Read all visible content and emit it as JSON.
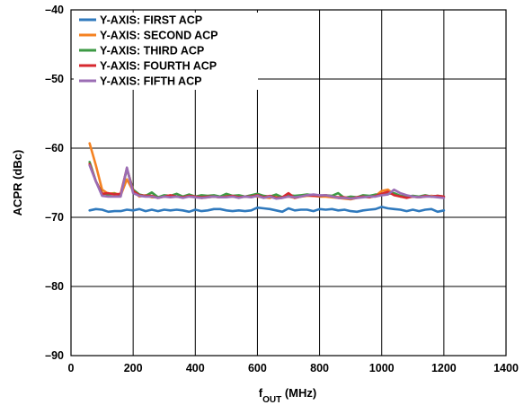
{
  "chart_data": {
    "type": "line",
    "title": "",
    "xlabel": {
      "main": "f",
      "sub": "OUT",
      "unit": " (MHz)"
    },
    "ylabel": "ACPR (dBc)",
    "xlim": [
      0,
      1400
    ],
    "ylim": [
      -90,
      -40
    ],
    "xticks": [
      0,
      200,
      400,
      600,
      800,
      1000,
      1200,
      1400
    ],
    "yticks": [
      -90,
      -80,
      -70,
      -60,
      -50,
      -40
    ],
    "xtick_labels": [
      "0",
      "200",
      "400",
      "600",
      "800",
      "1000",
      "1200",
      "1400"
    ],
    "ytick_labels": [
      "–90",
      "–80",
      "–70",
      "–60",
      "–50",
      "–40"
    ],
    "grid": true,
    "legend_position": "top-left",
    "x": [
      60,
      80,
      100,
      120,
      140,
      160,
      180,
      200,
      220,
      240,
      260,
      280,
      300,
      320,
      340,
      360,
      380,
      400,
      420,
      440,
      460,
      480,
      500,
      520,
      540,
      560,
      580,
      600,
      620,
      640,
      660,
      680,
      700,
      720,
      740,
      760,
      780,
      800,
      820,
      840,
      860,
      880,
      900,
      920,
      940,
      960,
      980,
      1000,
      1020,
      1040,
      1060,
      1080,
      1100,
      1120,
      1140,
      1160,
      1180,
      1200
    ],
    "series": [
      {
        "name": "Y-AXIS: FIRST ACP",
        "color": "#2f79bd",
        "values": [
          -69.0,
          -68.8,
          -68.9,
          -69.2,
          -69.1,
          -69.1,
          -68.9,
          -69.0,
          -68.8,
          -69.1,
          -68.9,
          -69.1,
          -68.9,
          -69.0,
          -68.9,
          -69.0,
          -69.2,
          -68.9,
          -69.1,
          -69.0,
          -68.8,
          -68.8,
          -69.0,
          -69.1,
          -69.0,
          -69.1,
          -69.0,
          -68.6,
          -68.7,
          -68.8,
          -69.0,
          -69.2,
          -68.7,
          -69.0,
          -68.9,
          -68.9,
          -69.1,
          -68.8,
          -68.9,
          -68.8,
          -69.0,
          -68.9,
          -69.1,
          -69.2,
          -69.0,
          -68.9,
          -68.8,
          -68.5,
          -68.7,
          -68.8,
          -68.9,
          -69.1,
          -68.9,
          -69.1,
          -68.9,
          -68.8,
          -69.2,
          -69.0
        ]
      },
      {
        "name": "Y-AXIS: SECOND ACP",
        "color": "#f58221",
        "values": [
          -59.3,
          -62.5,
          -66.0,
          -66.6,
          -66.5,
          -66.8,
          -64.5,
          -66.2,
          -67.0,
          -66.8,
          -67.1,
          -67.1,
          -67.0,
          -66.9,
          -67.0,
          -67.1,
          -66.9,
          -67.0,
          -67.2,
          -67.1,
          -67.0,
          -67.1,
          -66.9,
          -67.0,
          -67.1,
          -67.0,
          -66.9,
          -67.0,
          -67.1,
          -67.2,
          -66.9,
          -67.1,
          -67.0,
          -67.2,
          -67.0,
          -66.9,
          -66.9,
          -67.0,
          -67.0,
          -67.1,
          -67.2,
          -67.3,
          -67.4,
          -67.2,
          -67.0,
          -67.1,
          -66.9,
          -66.2,
          -66.0,
          -66.7,
          -67.0,
          -67.1,
          -67.0,
          -67.1,
          -67.0,
          -66.9,
          -67.0,
          -67.1
        ]
      },
      {
        "name": "Y-AXIS: THIRD ACP",
        "color": "#3d9a44",
        "values": [
          -62.0,
          -64.8,
          -66.5,
          -66.7,
          -66.6,
          -66.8,
          -63.0,
          -66.0,
          -66.7,
          -66.9,
          -66.4,
          -67.1,
          -66.8,
          -66.9,
          -66.6,
          -67.0,
          -66.7,
          -67.0,
          -66.8,
          -66.9,
          -66.8,
          -67.0,
          -66.6,
          -66.9,
          -66.8,
          -67.0,
          -66.8,
          -66.6,
          -66.9,
          -67.0,
          -66.7,
          -67.1,
          -66.8,
          -66.9,
          -66.8,
          -66.7,
          -66.8,
          -66.9,
          -66.8,
          -66.9,
          -66.5,
          -67.2,
          -67.0,
          -67.1,
          -66.8,
          -66.9,
          -66.7,
          -66.8,
          -66.6,
          -66.5,
          -66.9,
          -67.0,
          -66.9,
          -67.0,
          -66.8,
          -67.0,
          -66.9,
          -67.0
        ]
      },
      {
        "name": "Y-AXIS: FOURTH ACP",
        "color": "#d7282f",
        "values": [
          -62.3,
          -64.8,
          -66.6,
          -66.5,
          -66.7,
          -66.6,
          -62.9,
          -66.2,
          -66.8,
          -66.9,
          -66.9,
          -67.2,
          -67.0,
          -66.8,
          -67.0,
          -67.1,
          -66.9,
          -67.0,
          -67.1,
          -67.0,
          -67.0,
          -67.1,
          -67.0,
          -66.9,
          -67.1,
          -67.0,
          -67.0,
          -66.8,
          -67.1,
          -66.9,
          -67.2,
          -67.1,
          -66.5,
          -67.2,
          -67.0,
          -66.8,
          -66.9,
          -66.9,
          -66.8,
          -67.0,
          -67.1,
          -67.1,
          -67.3,
          -67.1,
          -67.0,
          -67.1,
          -66.9,
          -66.6,
          -66.3,
          -66.8,
          -67.0,
          -67.2,
          -67.0,
          -67.1,
          -66.9,
          -67.0,
          -66.9,
          -67.0
        ]
      },
      {
        "name": "Y-AXIS: FIFTH ACP",
        "color": "#9b6db4",
        "values": [
          -62.5,
          -64.8,
          -66.9,
          -67.0,
          -67.0,
          -67.0,
          -62.8,
          -66.5,
          -66.9,
          -67.0,
          -67.0,
          -67.2,
          -67.0,
          -67.1,
          -67.0,
          -67.2,
          -67.0,
          -67.1,
          -67.2,
          -67.1,
          -67.0,
          -67.1,
          -67.1,
          -67.0,
          -67.2,
          -67.0,
          -67.1,
          -66.9,
          -67.2,
          -67.0,
          -67.3,
          -67.2,
          -67.0,
          -67.1,
          -67.0,
          -66.8,
          -66.7,
          -66.8,
          -66.8,
          -67.0,
          -67.2,
          -67.2,
          -67.3,
          -67.2,
          -67.1,
          -67.0,
          -67.0,
          -66.8,
          -66.7,
          -66.0,
          -66.5,
          -66.8,
          -67.0,
          -67.1,
          -67.0,
          -67.0,
          -67.1,
          -67.2
        ]
      }
    ]
  }
}
